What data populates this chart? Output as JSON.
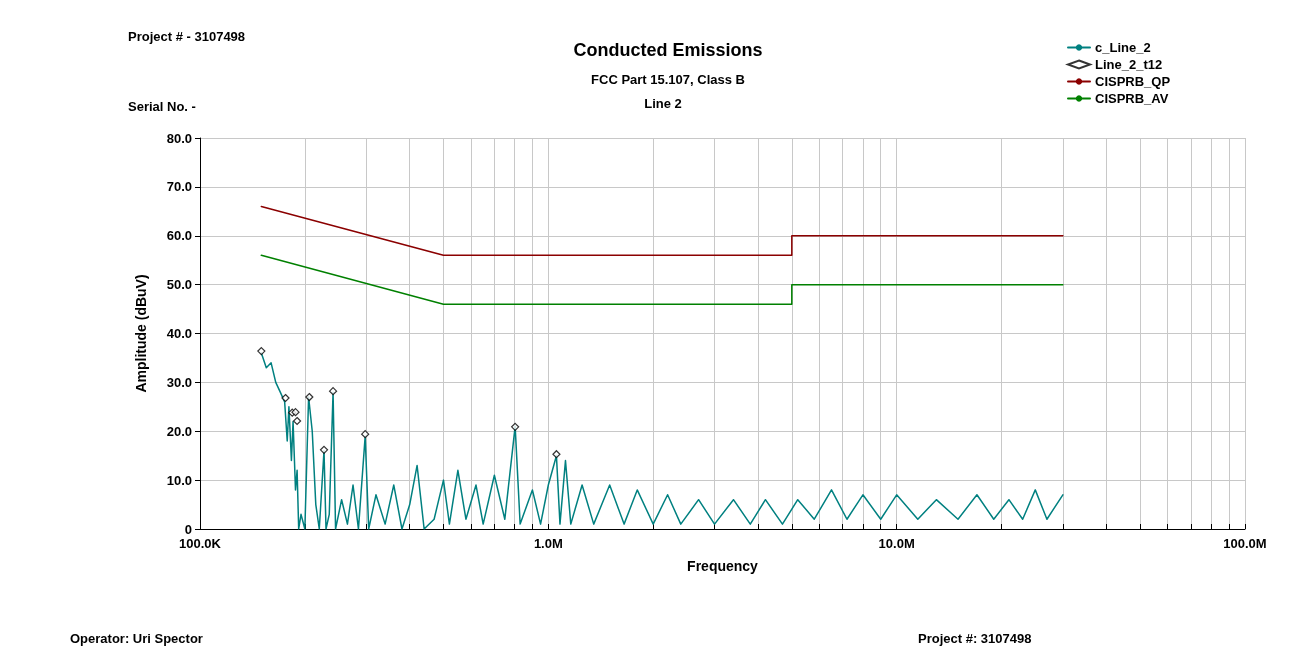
{
  "chart_data": {
    "type": "line",
    "title": "Conducted Emissions",
    "subtitle": "FCC Part 15.107, Class B",
    "xlabel": "Frequency",
    "ylabel": "Amplitude (dBuV)",
    "annotations": [
      "Project # - 3107498",
      "Serial No. -",
      "Line 2",
      "Operator: Uri Spector",
      "Project #: 3107498"
    ],
    "log": "x",
    "grid": true,
    "legend": "top right",
    "marker": "none",
    "line_style": "solid",
    "xlim": [
      100000,
      100000000
    ],
    "ylim": [
      0,
      80
    ],
    "xticks": [
      {
        "value": 100000,
        "label": "100.0K"
      },
      {
        "value": 200000,
        "label": null
      },
      {
        "value": 300000,
        "label": null
      },
      {
        "value": 400000,
        "label": null
      },
      {
        "value": 500000,
        "label": null
      },
      {
        "value": 600000,
        "label": null
      },
      {
        "value": 700000,
        "label": null
      },
      {
        "value": 800000,
        "label": null
      },
      {
        "value": 900000,
        "label": null
      },
      {
        "value": 1000000,
        "label": "1.0M"
      },
      {
        "value": 2000000,
        "label": null
      },
      {
        "value": 3000000,
        "label": null
      },
      {
        "value": 4000000,
        "label": null
      },
      {
        "value": 5000000,
        "label": null
      },
      {
        "value": 6000000,
        "label": null
      },
      {
        "value": 7000000,
        "label": null
      },
      {
        "value": 8000000,
        "label": null
      },
      {
        "value": 9000000,
        "label": null
      },
      {
        "value": 10000000,
        "label": "10.0M"
      },
      {
        "value": 20000000,
        "label": null
      },
      {
        "value": 30000000,
        "label": null
      },
      {
        "value": 40000000,
        "label": null
      },
      {
        "value": 50000000,
        "label": null
      },
      {
        "value": 60000000,
        "label": null
      },
      {
        "value": 70000000,
        "label": null
      },
      {
        "value": 80000000,
        "label": null
      },
      {
        "value": 90000000,
        "label": null
      },
      {
        "value": 100000000,
        "label": "100.0M"
      }
    ],
    "yticks": [
      {
        "value": 0,
        "label": "0"
      },
      {
        "value": 10,
        "label": "10.0"
      },
      {
        "value": 20,
        "label": "20.0"
      },
      {
        "value": 30,
        "label": "30.0"
      },
      {
        "value": 40,
        "label": "40.0"
      },
      {
        "value": 50,
        "label": "50.0"
      },
      {
        "value": 60,
        "label": "60.0"
      },
      {
        "value": 70,
        "label": "70.0"
      },
      {
        "value": 80,
        "label": "80.0"
      }
    ],
    "series": [
      {
        "name": "c_Line_2",
        "color": "#008080",
        "x": [
          150000,
          155000,
          160000,
          165000,
          170000,
          175000,
          178000,
          180000,
          183000,
          185000,
          188000,
          190000,
          192000,
          195000,
          200000,
          205000,
          210000,
          215000,
          220000,
          227000,
          230000,
          235000,
          241000,
          245000,
          255000,
          265000,
          275000,
          285000,
          298000,
          305000,
          320000,
          340000,
          360000,
          380000,
          400000,
          420000,
          440000,
          470000,
          500000,
          520000,
          550000,
          580000,
          620000,
          650000,
          700000,
          750000,
          803000,
          830000,
          900000,
          950000,
          1000000,
          1055000,
          1080000,
          1120000,
          1160000,
          1250000,
          1350000,
          1500000,
          1650000,
          1800000,
          2000000,
          2200000,
          2400000,
          2700000,
          3000000,
          3400000,
          3800000,
          4200000,
          4700000,
          5200000,
          5800000,
          6500000,
          7200000,
          8000000,
          9000000,
          10000000,
          11500000,
          13000000,
          15000000,
          17000000,
          19000000,
          21000000,
          23000000,
          25000000,
          27000000,
          30000000
        ],
        "values": [
          36,
          33,
          34,
          30,
          28,
          26,
          18,
          25,
          14,
          22,
          8,
          12,
          0,
          3,
          0,
          27,
          20,
          5,
          0,
          16,
          0,
          3,
          28,
          0,
          6,
          1,
          9,
          0,
          19,
          0,
          7,
          1,
          9,
          0,
          5,
          13,
          0,
          2,
          10,
          1,
          12,
          2,
          9,
          1,
          11,
          2,
          21,
          1,
          8,
          1,
          9,
          15,
          1,
          14,
          1,
          9,
          1,
          9,
          1,
          8,
          1,
          7,
          1,
          6,
          1,
          6,
          1,
          6,
          1,
          6,
          2,
          8,
          2,
          7,
          2,
          7,
          2,
          6,
          2,
          7,
          2,
          6,
          2,
          8,
          2,
          7
        ]
      },
      {
        "name": "Line_2_t12",
        "type": "scatter",
        "marker": "diamond",
        "color": "#000000",
        "x": [
          150000,
          176000,
          184000,
          188000,
          190000,
          206000,
          227000,
          241000,
          298000,
          803000,
          1055000
        ],
        "values": [
          36.4,
          26.8,
          23.8,
          23.9,
          22.1,
          27,
          16.2,
          28.2,
          19.4,
          20.9,
          15.3
        ]
      },
      {
        "name": "CISPRB_QP",
        "color": "#8b0000",
        "x": [
          150000,
          500000,
          5000000,
          5000000,
          30000000
        ],
        "values": [
          66,
          56,
          56,
          60,
          60
        ]
      },
      {
        "name": "CISPRB_AV",
        "color": "#008000",
        "x": [
          150000,
          500000,
          5000000,
          5000000,
          30000000
        ],
        "values": [
          56,
          46,
          46,
          50,
          50
        ]
      }
    ]
  }
}
